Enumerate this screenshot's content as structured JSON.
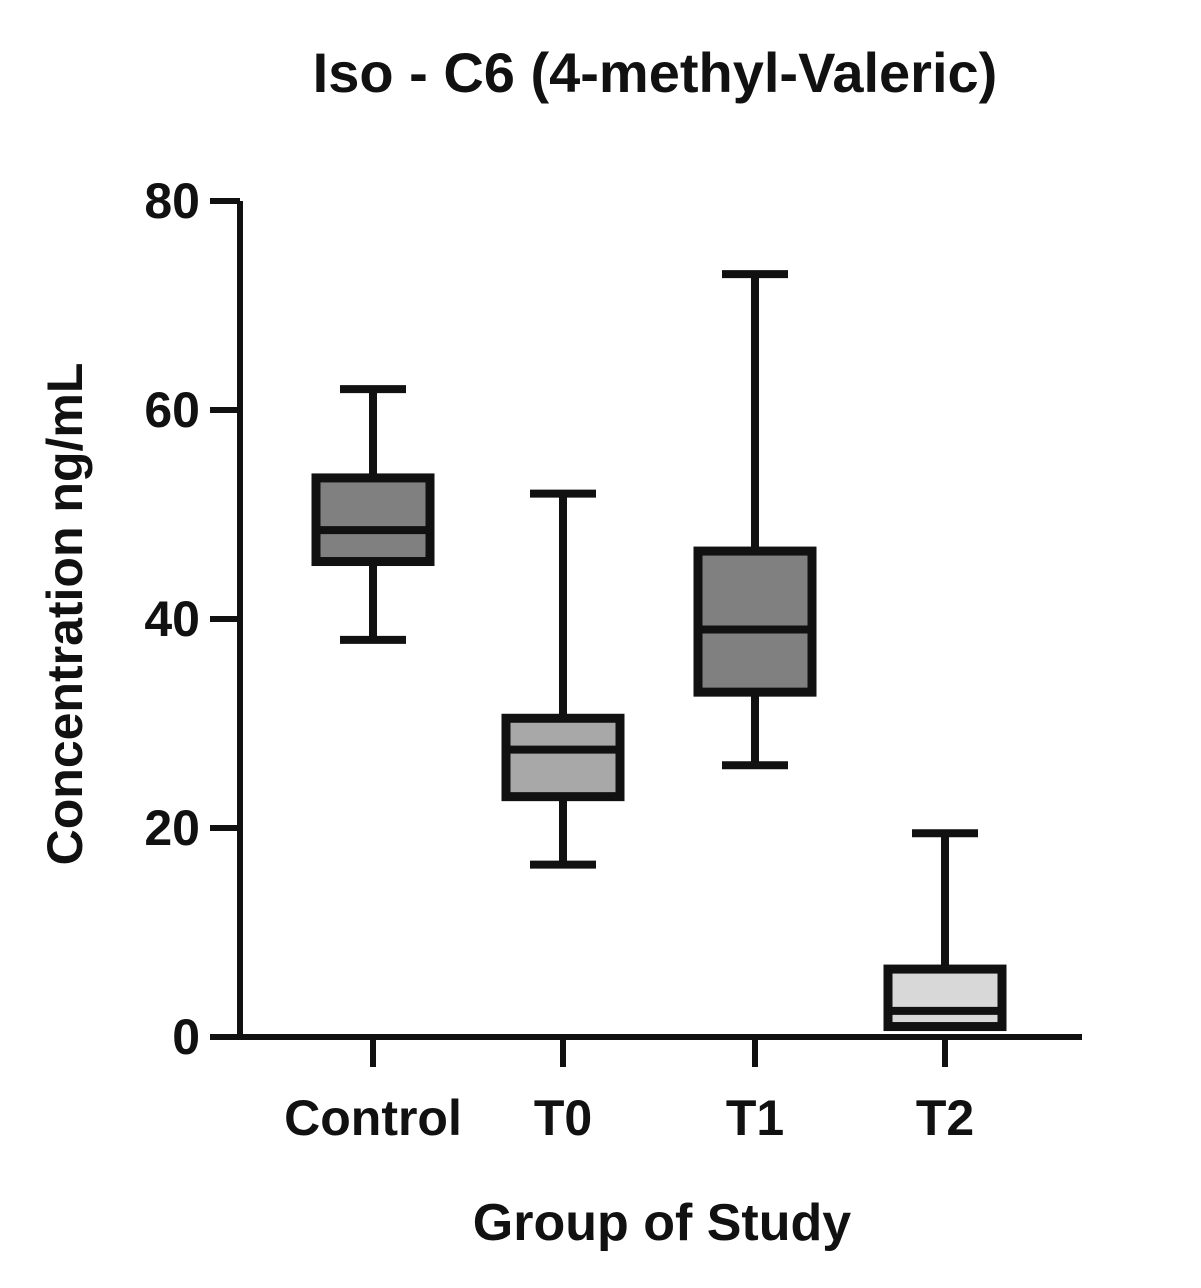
{
  "chart_data": {
    "type": "boxplot",
    "title": "Iso - C6 (4-methyl-Valeric)",
    "xlabel": "Group of  Study",
    "ylabel": "Concentration ng/mL",
    "ylim": [
      0,
      80
    ],
    "yticks": [
      0,
      20,
      40,
      60,
      80
    ],
    "grid": false,
    "categories": [
      "Control",
      "T0",
      "T1",
      "T2"
    ],
    "series": [
      {
        "name": "Control",
        "min": 38,
        "q1": 45.5,
        "median": 48.5,
        "q3": 53.5,
        "max": 62,
        "fill": "#808080"
      },
      {
        "name": "T0",
        "min": 16.5,
        "q1": 23,
        "median": 27.5,
        "q3": 30.5,
        "max": 52,
        "fill": "#a8a8a8"
      },
      {
        "name": "T1",
        "min": 26,
        "q1": 33,
        "median": 39,
        "q3": 46.5,
        "max": 73,
        "fill": "#808080"
      },
      {
        "name": "T2",
        "min": 1,
        "q1": 1,
        "median": 2.5,
        "q3": 6.5,
        "max": 19.5,
        "fill": "#d8d8d8"
      }
    ]
  },
  "colors": {
    "axis": "#111111",
    "background": "#ffffff"
  }
}
